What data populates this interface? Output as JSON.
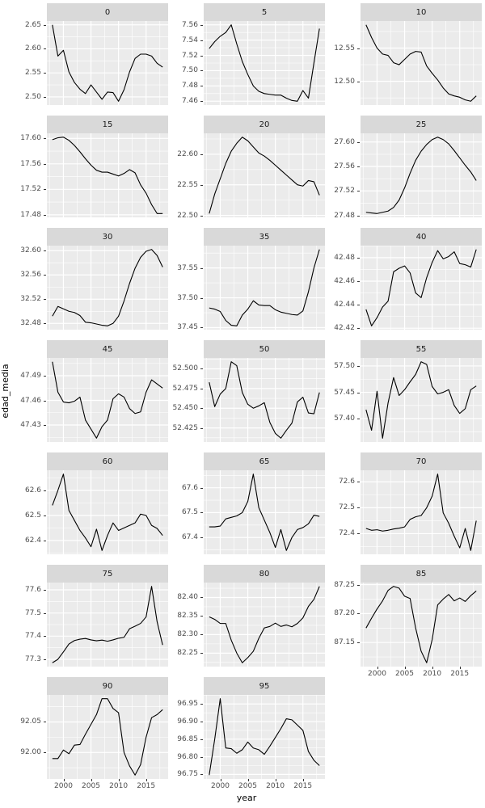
{
  "figure": {
    "bg": "#FFFFFF",
    "panel_bg": "#EBEBEB",
    "strip_bg": "#D9D9D9",
    "grid_color": "#FFFFFF",
    "line_color": "#000000",
    "tick_text_color": "#4D4D4D",
    "strip_text_color": "#1A1A1A"
  },
  "chart_data": {
    "type": "line",
    "title": "",
    "xlabel": "year",
    "ylabel": "edad_media",
    "grid": true,
    "legend": false,
    "x": [
      1998,
      1999,
      2000,
      2001,
      2002,
      2003,
      2004,
      2005,
      2006,
      2007,
      2008,
      2009,
      2010,
      2011,
      2012,
      2013,
      2014,
      2015,
      2016,
      2017,
      2018
    ],
    "xticks": [
      "2000",
      "2005",
      "2010",
      "2015"
    ],
    "xlim": [
      1997,
      2019
    ],
    "facets": [
      {
        "label": "0",
        "axis": false,
        "yticks": [
          "2.50",
          "2.55",
          "2.60",
          "2.65"
        ],
        "values": [
          2.65,
          2.585,
          2.597,
          2.552,
          2.53,
          2.516,
          2.507,
          2.525,
          2.51,
          2.495,
          2.51,
          2.509,
          2.491,
          2.515,
          2.552,
          2.58,
          2.589,
          2.589,
          2.585,
          2.57,
          2.562
        ]
      },
      {
        "label": "5",
        "axis": false,
        "yticks": [
          "7.46",
          "7.48",
          "7.50",
          "7.52",
          "7.54",
          "7.56"
        ],
        "values": [
          7.529,
          7.538,
          7.545,
          7.55,
          7.56,
          7.535,
          7.512,
          7.495,
          7.48,
          7.473,
          7.47,
          7.469,
          7.468,
          7.468,
          7.464,
          7.461,
          7.46,
          7.474,
          7.464,
          7.51,
          7.555
        ]
      },
      {
        "label": "10",
        "axis": false,
        "yticks": [
          "12.50",
          "12.55"
        ],
        "values": [
          12.585,
          12.566,
          12.55,
          12.541,
          12.539,
          12.528,
          12.525,
          12.533,
          12.541,
          12.545,
          12.544,
          12.523,
          12.512,
          12.502,
          12.49,
          12.481,
          12.478,
          12.476,
          12.472,
          12.47,
          12.478
        ]
      },
      {
        "label": "15",
        "axis": false,
        "yticks": [
          "17.48",
          "17.52",
          "17.56",
          "17.60"
        ],
        "values": [
          17.598,
          17.601,
          17.602,
          17.597,
          17.589,
          17.579,
          17.568,
          17.558,
          17.55,
          17.547,
          17.547,
          17.544,
          17.541,
          17.545,
          17.551,
          17.546,
          17.527,
          17.514,
          17.496,
          17.482,
          17.482
        ]
      },
      {
        "label": "20",
        "axis": false,
        "yticks": [
          "22.50",
          "22.55",
          "22.60"
        ],
        "values": [
          22.503,
          22.535,
          22.56,
          22.585,
          22.605,
          22.618,
          22.628,
          22.622,
          22.612,
          22.602,
          22.597,
          22.59,
          22.582,
          22.574,
          22.566,
          22.558,
          22.55,
          22.548,
          22.557,
          22.555,
          22.533
        ]
      },
      {
        "label": "25",
        "axis": false,
        "yticks": [
          "27.48",
          "27.52",
          "27.56",
          "27.60"
        ],
        "values": [
          27.485,
          27.484,
          27.483,
          27.485,
          27.487,
          27.493,
          27.505,
          27.525,
          27.549,
          27.57,
          27.585,
          27.596,
          27.604,
          27.608,
          27.604,
          27.597,
          27.586,
          27.574,
          27.562,
          27.551,
          27.537
        ]
      },
      {
        "label": "30",
        "axis": false,
        "yticks": [
          "32.48",
          "32.52",
          "32.56",
          "32.60"
        ],
        "values": [
          32.492,
          32.508,
          32.504,
          32.5,
          32.498,
          32.493,
          32.482,
          32.481,
          32.479,
          32.477,
          32.476,
          32.48,
          32.492,
          32.517,
          32.546,
          32.571,
          32.589,
          32.599,
          32.602,
          32.592,
          32.573
        ]
      },
      {
        "label": "35",
        "axis": false,
        "yticks": [
          "37.45",
          "37.50",
          "37.55"
        ],
        "values": [
          37.483,
          37.481,
          37.477,
          37.462,
          37.454,
          37.453,
          37.471,
          37.481,
          37.495,
          37.488,
          37.487,
          37.487,
          37.48,
          37.476,
          37.474,
          37.472,
          37.471,
          37.478,
          37.51,
          37.55,
          37.581
        ]
      },
      {
        "label": "40",
        "axis": false,
        "yticks": [
          "42.42",
          "42.44",
          "42.46",
          "42.48"
        ],
        "values": [
          42.436,
          42.422,
          42.429,
          42.438,
          42.443,
          42.468,
          42.471,
          42.473,
          42.467,
          42.45,
          42.446,
          42.463,
          42.476,
          42.486,
          42.479,
          42.481,
          42.485,
          42.475,
          42.474,
          42.472,
          42.487
        ]
      },
      {
        "label": "45",
        "axis": false,
        "yticks": [
          "47.43",
          "47.46",
          "47.49"
        ],
        "values": [
          47.507,
          47.47,
          47.458,
          47.457,
          47.459,
          47.464,
          47.436,
          47.425,
          47.414,
          47.428,
          47.436,
          47.462,
          47.468,
          47.464,
          47.45,
          47.444,
          47.446,
          47.47,
          47.485,
          47.48,
          47.475
        ]
      },
      {
        "label": "50",
        "axis": false,
        "yticks": [
          "52.425",
          "52.450",
          "52.475",
          "52.500"
        ],
        "values": [
          52.483,
          52.452,
          52.468,
          52.475,
          52.509,
          52.504,
          52.47,
          52.455,
          52.45,
          52.453,
          52.457,
          52.432,
          52.418,
          52.412,
          52.422,
          52.431,
          52.458,
          52.464,
          52.444,
          52.443,
          52.47
        ]
      },
      {
        "label": "55",
        "axis": false,
        "yticks": [
          "57.40",
          "57.45",
          "57.50"
        ],
        "values": [
          57.417,
          57.378,
          57.452,
          57.363,
          57.43,
          57.478,
          57.444,
          57.455,
          57.47,
          57.484,
          57.508,
          57.503,
          57.461,
          57.447,
          57.45,
          57.455,
          57.425,
          57.41,
          57.419,
          57.455,
          57.462
        ]
      },
      {
        "label": "60",
        "axis": false,
        "yticks": [
          "62.4",
          "62.5",
          "62.6"
        ],
        "values": [
          62.54,
          62.6,
          62.665,
          62.52,
          62.48,
          62.44,
          62.41,
          62.375,
          62.445,
          62.36,
          62.42,
          62.47,
          62.44,
          62.45,
          62.46,
          62.47,
          62.505,
          62.5,
          62.46,
          62.448,
          62.42
        ]
      },
      {
        "label": "65",
        "axis": false,
        "yticks": [
          "67.4",
          "67.5",
          "67.6"
        ],
        "values": [
          67.443,
          67.443,
          67.446,
          67.475,
          67.481,
          67.487,
          67.5,
          67.545,
          67.655,
          67.52,
          67.47,
          67.42,
          67.36,
          67.432,
          67.348,
          67.4,
          67.432,
          67.44,
          67.455,
          67.49,
          67.485
        ]
      },
      {
        "label": "70",
        "axis": false,
        "yticks": [
          "72.4",
          "72.5",
          "72.6"
        ],
        "values": [
          72.42,
          72.413,
          72.415,
          72.41,
          72.413,
          72.418,
          72.421,
          72.426,
          72.455,
          72.465,
          72.47,
          72.5,
          72.545,
          72.63,
          72.48,
          72.44,
          72.39,
          72.345,
          72.42,
          72.335,
          72.45
        ]
      },
      {
        "label": "75",
        "axis": false,
        "yticks": [
          "77.3",
          "77.4",
          "77.5",
          "77.6"
        ],
        "values": [
          77.285,
          77.3,
          77.332,
          77.366,
          77.381,
          77.387,
          77.39,
          77.384,
          77.38,
          77.383,
          77.378,
          77.384,
          77.391,
          77.395,
          77.432,
          77.443,
          77.455,
          77.483,
          77.615,
          77.462,
          77.362
        ]
      },
      {
        "label": "80",
        "axis": false,
        "yticks": [
          "82.25",
          "82.30",
          "82.35",
          "82.40"
        ],
        "values": [
          82.348,
          82.341,
          82.33,
          82.33,
          82.285,
          82.25,
          82.224,
          82.238,
          82.255,
          82.29,
          82.318,
          82.322,
          82.331,
          82.322,
          82.326,
          82.321,
          82.33,
          82.345,
          82.376,
          82.395,
          82.43
        ]
      },
      {
        "label": "85",
        "axis": true,
        "yticks": [
          "87.15",
          "87.20",
          "87.25"
        ],
        "values": [
          87.175,
          87.192,
          87.208,
          87.222,
          87.24,
          87.247,
          87.244,
          87.23,
          87.226,
          87.175,
          87.135,
          87.115,
          87.155,
          87.215,
          87.225,
          87.233,
          87.222,
          87.227,
          87.221,
          87.231,
          87.239
        ]
      },
      {
        "label": "90",
        "axis": true,
        "yticks": [
          "92.00",
          "92.05"
        ],
        "values": [
          91.99,
          91.99,
          92.004,
          91.998,
          92.012,
          92.013,
          92.03,
          92.046,
          92.062,
          92.088,
          92.088,
          92.072,
          92.065,
          92.0,
          91.978,
          91.963,
          91.98,
          92.025,
          92.057,
          92.062,
          92.07
        ]
      },
      {
        "label": "95",
        "axis": true,
        "yticks": [
          "96.75",
          "96.80",
          "96.85",
          "96.90",
          "96.95"
        ],
        "values": [
          96.748,
          96.85,
          96.965,
          96.825,
          96.823,
          96.81,
          96.82,
          96.842,
          96.825,
          96.82,
          96.807,
          96.83,
          96.855,
          96.88,
          96.908,
          96.905,
          96.89,
          96.875,
          96.815,
          96.79,
          96.775
        ]
      }
    ]
  }
}
